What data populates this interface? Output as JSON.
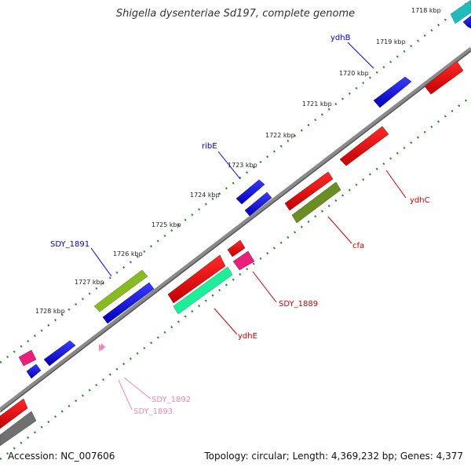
{
  "title": "Shigella dysenteriae Sd197, complete genome",
  "footer": {
    "accession": "Accession: NC_007606",
    "summary": "Topology: circular; Length: 4,369,232 bp; Genes: 4,377"
  },
  "colors": {
    "backbone": "#808080",
    "tick": "#2e8b2e",
    "plus_label": "#0000cc",
    "minus_label": "#cc0000",
    "rna_label": "#ee88bb"
  },
  "scale": {
    "unit": "kbp",
    "labels": [
      {
        "kbp": 1718,
        "text": "1718 kbp"
      },
      {
        "kbp": 1719,
        "text": "1719 kbp"
      },
      {
        "kbp": 1720,
        "text": "1720 kbp"
      },
      {
        "kbp": 1721,
        "text": "1721 kbp"
      },
      {
        "kbp": 1722,
        "text": "1722 kbp"
      },
      {
        "kbp": 1723,
        "text": "1723 kbp"
      },
      {
        "kbp": 1724,
        "text": "1724 kbp"
      },
      {
        "kbp": 1725,
        "text": "1725 kbp"
      },
      {
        "kbp": 1726,
        "text": "1726 kbp"
      },
      {
        "kbp": 1727,
        "text": "1727 kbp"
      },
      {
        "kbp": 1728,
        "text": "1728 kbp"
      }
    ]
  },
  "gene_labels": [
    {
      "name": "ydhB",
      "strand": "plus"
    },
    {
      "name": "ribE",
      "strand": "plus"
    },
    {
      "name": "SDY_1891",
      "strand": "plus"
    },
    {
      "name": "ydhC",
      "strand": "minus"
    },
    {
      "name": "cfa",
      "strand": "minus"
    },
    {
      "name": "SDY_1889",
      "strand": "minus"
    },
    {
      "name": "ydhE",
      "strand": "minus"
    },
    {
      "name": "SDY_1892",
      "strand": "rna"
    },
    {
      "name": "SDY_1893",
      "strand": "rna"
    }
  ]
}
